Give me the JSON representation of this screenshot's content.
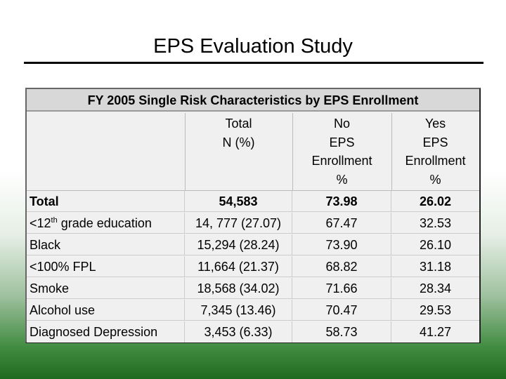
{
  "slide": {
    "title": "EPS Evaluation Study"
  },
  "table": {
    "caption": "FY 2005 Single Risk Characteristics by EPS Enrollment",
    "headers": {
      "total": [
        "Total",
        "N (%)"
      ],
      "no": [
        "No",
        "EPS",
        "Enrollment",
        "%"
      ],
      "yes": [
        "Yes",
        "EPS",
        "Enrollment",
        "%"
      ]
    },
    "rows": [
      {
        "label": "Total",
        "total": "54,583",
        "no": "73.98",
        "yes": "26.02",
        "bold": true
      },
      {
        "label_pre": "<12",
        "label_sup": "th",
        "label_post": " grade education",
        "total": "14, 777 (27.07)",
        "no": "67.47",
        "yes": "32.53"
      },
      {
        "label": "Black",
        "total": "15,294 (28.24)",
        "no": "73.90",
        "yes": "26.10"
      },
      {
        "label": "<100% FPL",
        "total": "11,664 (21.37)",
        "no": "68.82",
        "yes": "31.18"
      },
      {
        "label": "Smoke",
        "total": "18,568 (34.02)",
        "no": "71.66",
        "yes": "28.34"
      },
      {
        "label": "Alcohol use",
        "total": "7,345 (13.46)",
        "no": "70.47",
        "yes": "29.53"
      },
      {
        "label": "Diagnosed Depression",
        "total": "3,453 (6.33)",
        "no": "58.73",
        "yes": "41.27"
      }
    ]
  }
}
